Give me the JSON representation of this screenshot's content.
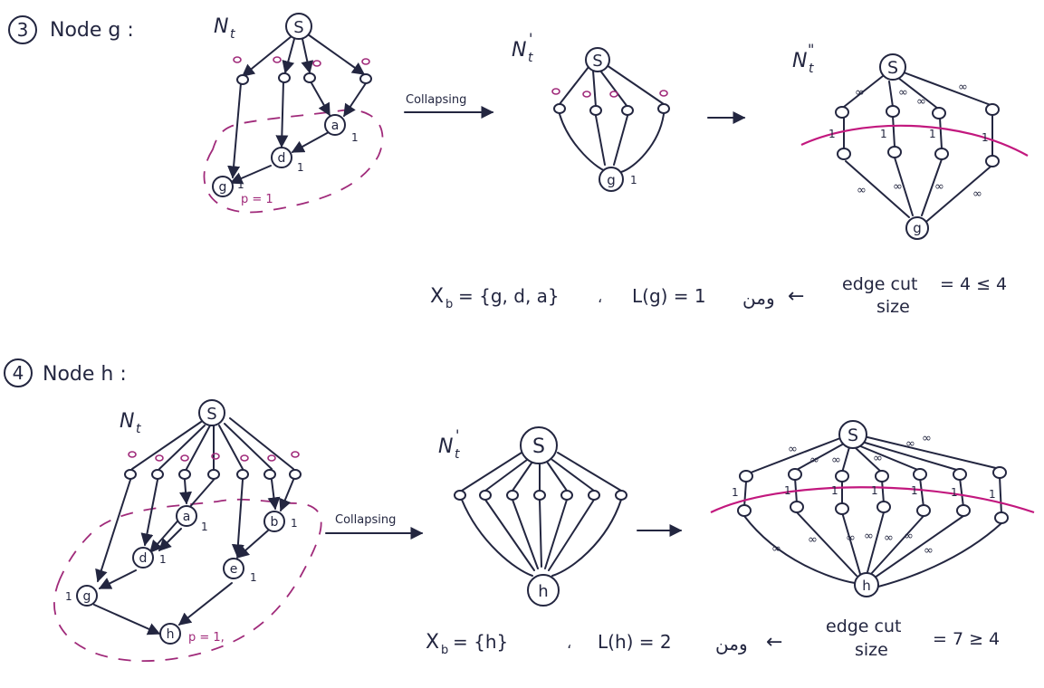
{
  "colors": {
    "ink": "#232640",
    "accent": "#a02a7a",
    "cut": "#c2187e",
    "background": "#ffffff"
  },
  "step3": {
    "number": "3",
    "title": "Node g :",
    "net_label": "N",
    "net_sub": "t",
    "collapse_label": "Collapsing",
    "collapsed_label": "N",
    "collapsed_sub": "t",
    "collapsed_mark": "'",
    "split_label": "N",
    "split_sub": "t",
    "split_mark": "\"",
    "root": "S",
    "nodes": {
      "a": "a",
      "d": "d",
      "g": "g"
    },
    "weights": {
      "a": "1",
      "d": "1",
      "g": "1"
    },
    "p_label": "p = 1",
    "infinity": "∞",
    "one": "1",
    "xb_label": "X",
    "xb_sub": "b",
    "xb_value": "= {g, d, a}",
    "separator": "،",
    "lg": "L(g) = 1",
    "arabic": "ومن",
    "arrow": "←",
    "edge_cut_line1": "edge cut",
    "edge_cut_line2": "size",
    "edge_cut_value": "= 4 ≤ 4"
  },
  "step4": {
    "number": "4",
    "title": "Node h :",
    "net_label": "N",
    "net_sub": "t",
    "collapse_label": "Collapsing",
    "collapsed_label": "N",
    "collapsed_sub": "t",
    "collapsed_mark": "'",
    "root": "S",
    "nodes": {
      "a": "a",
      "b": "b",
      "d": "d",
      "e": "e",
      "g": "g",
      "h": "h"
    },
    "weights": {
      "a": "1",
      "b": "1",
      "d": "1",
      "e": "1",
      "g": "1"
    },
    "p_label": "p = 1,",
    "infinity": "∞",
    "one": "1",
    "xb_label": "X",
    "xb_sub": "b",
    "xb_value": "= {h}",
    "separator": "،",
    "lh": "L(h) = 2",
    "arabic": "ومن",
    "arrow": "←",
    "edge_cut_line1": "edge cut",
    "edge_cut_line2": "size",
    "edge_cut_value": "= 7 ≥ 4"
  }
}
